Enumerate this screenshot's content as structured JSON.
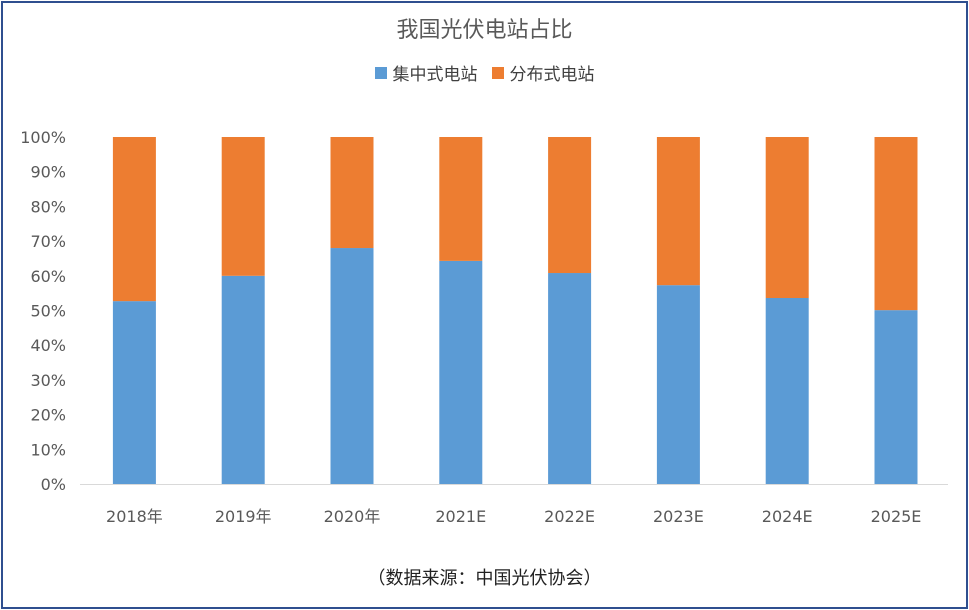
{
  "chart_data": {
    "type": "bar",
    "stacked": true,
    "title": "我国光伏电站占比",
    "categories": [
      "2018年",
      "2019年",
      "2020年",
      "2021E",
      "2022E",
      "2023E",
      "2024E",
      "2025E"
    ],
    "series": [
      {
        "name": "集中式电站",
        "color": "#5b9bd5",
        "values": [
          52.7,
          60.0,
          68.0,
          64.3,
          60.8,
          57.3,
          53.6,
          50.1
        ]
      },
      {
        "name": "分布式电站",
        "color": "#ed7d31",
        "values": [
          47.3,
          40.0,
          32.0,
          35.7,
          39.2,
          42.7,
          46.4,
          49.9
        ]
      }
    ],
    "yticks": [
      "0%",
      "10%",
      "20%",
      "30%",
      "40%",
      "50%",
      "60%",
      "70%",
      "80%",
      "90%",
      "100%"
    ],
    "ylim": [
      0,
      100
    ],
    "grid": false,
    "legend": "top",
    "xlabel": "",
    "ylabel": ""
  },
  "source": "（数据来源：中国光伏协会）"
}
